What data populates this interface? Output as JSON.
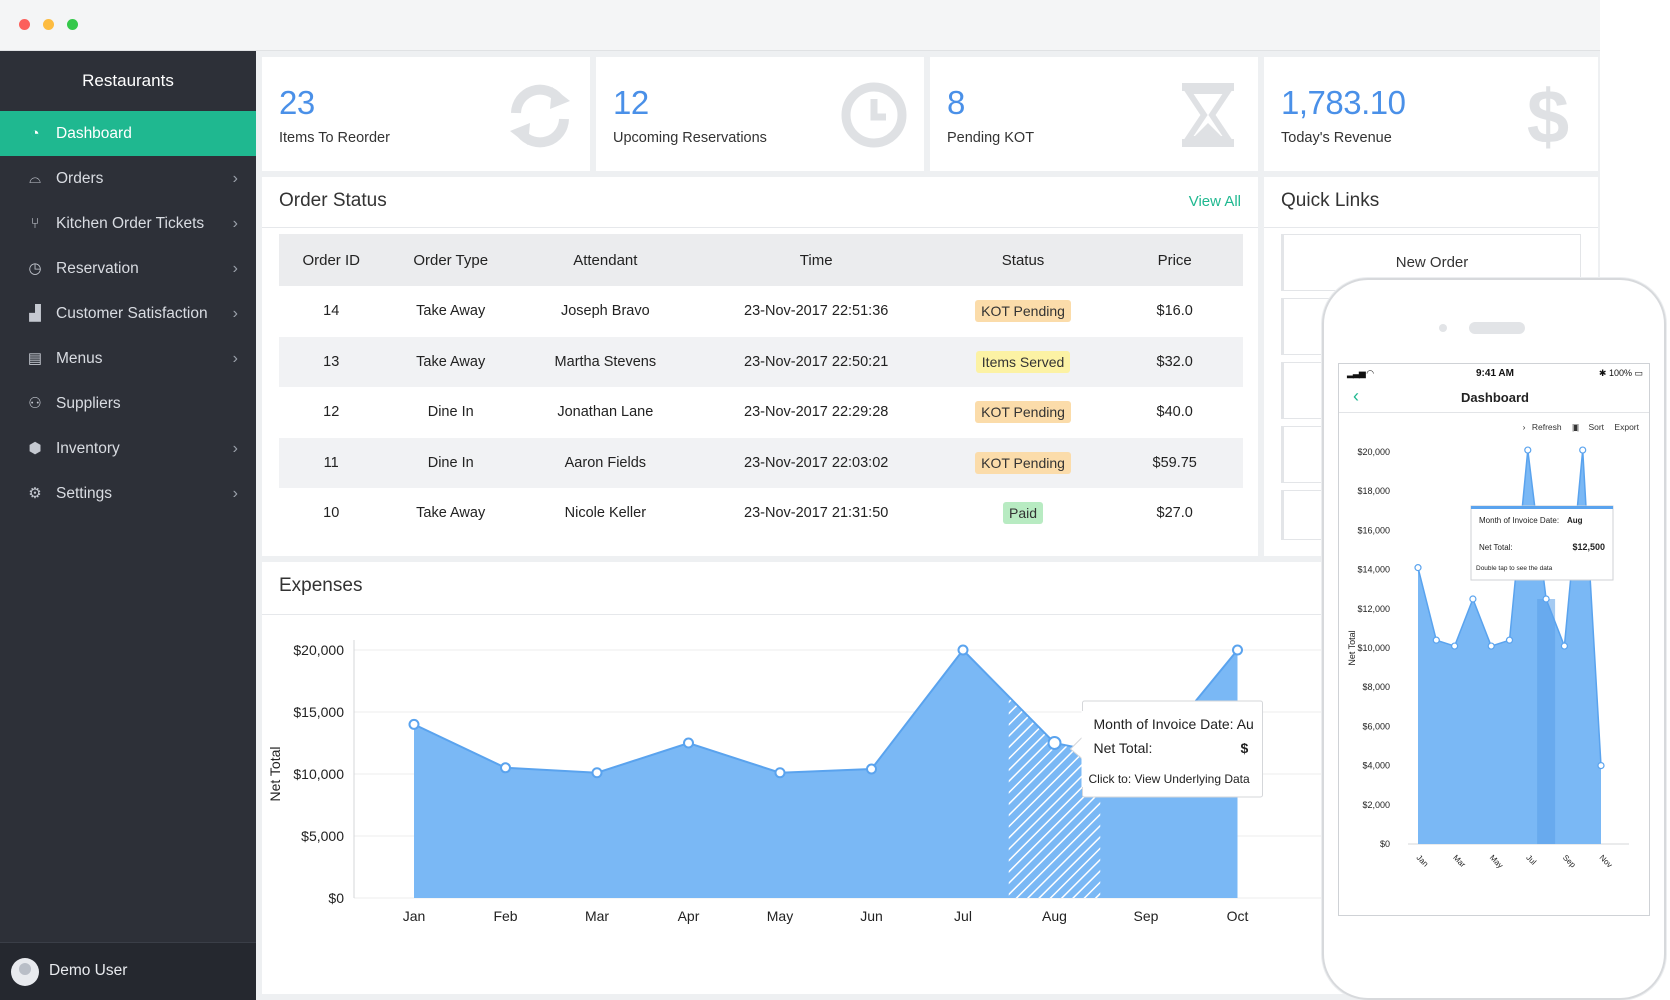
{
  "window": {
    "controls": [
      "close",
      "minimize",
      "zoom"
    ]
  },
  "sidebar": {
    "brand": "Restaurants",
    "items": [
      {
        "label": "Dashboard",
        "icon": "dashboard-icon",
        "active": true,
        "chevron": false
      },
      {
        "label": "Orders",
        "icon": "cloche-icon",
        "active": false,
        "chevron": true
      },
      {
        "label": "Kitchen Order Tickets",
        "icon": "cutlery-icon",
        "active": false,
        "chevron": true
      },
      {
        "label": "Reservation",
        "icon": "clock-icon",
        "active": false,
        "chevron": true
      },
      {
        "label": "Customer Satisfaction",
        "icon": "ranking-icon",
        "active": false,
        "chevron": true
      },
      {
        "label": "Menus",
        "icon": "menu-book-icon",
        "active": false,
        "chevron": true
      },
      {
        "label": "Suppliers",
        "icon": "people-icon",
        "active": false,
        "chevron": false
      },
      {
        "label": "Inventory",
        "icon": "box-icon",
        "active": false,
        "chevron": true
      },
      {
        "label": "Settings",
        "icon": "gear-icon",
        "active": false,
        "chevron": true
      }
    ],
    "user": "Demo User"
  },
  "stats": [
    {
      "value": "23",
      "label": "Items To Reorder",
      "icon": "refresh-icon"
    },
    {
      "value": "12",
      "label": "Upcoming Reservations",
      "icon": "clock-icon"
    },
    {
      "value": "8",
      "label": "Pending KOT",
      "icon": "hourglass-icon"
    },
    {
      "value": "1,783.10",
      "label": "Today's Revenue",
      "icon": "dollar-icon"
    }
  ],
  "order_status": {
    "title": "Order Status",
    "view_all": "View All",
    "columns": [
      "Order ID",
      "Order Type",
      "Attendant",
      "Time",
      "Status",
      "Price"
    ],
    "rows": [
      {
        "id": "14",
        "type": "Take Away",
        "attendant": "Joseph Bravo",
        "time": "23-Nov-2017 22:51:36",
        "status": "KOT Pending",
        "price": "$16.0"
      },
      {
        "id": "13",
        "type": "Take Away",
        "attendant": "Martha Stevens",
        "time": "23-Nov-2017 22:50:21",
        "status": "Items Served",
        "price": "$32.0"
      },
      {
        "id": "12",
        "type": "Dine In",
        "attendant": "Jonathan Lane",
        "time": "23-Nov-2017 22:29:28",
        "status": "KOT Pending",
        "price": "$40.0"
      },
      {
        "id": "11",
        "type": "Dine In",
        "attendant": "Aaron Fields",
        "time": "23-Nov-2017 22:03:02",
        "status": "KOT Pending",
        "price": "$59.75"
      },
      {
        "id": "10",
        "type": "Take Away",
        "attendant": "Nicole Keller",
        "time": "23-Nov-2017 21:31:50",
        "status": "Paid",
        "price": "$27.0"
      }
    ]
  },
  "status_colors": {
    "KOT Pending": "#fbdcaa",
    "Items Served": "#fcf2a4",
    "Paid": "#b8ebc2"
  },
  "quick_links": {
    "title": "Quick Links",
    "items": [
      "New Order"
    ]
  },
  "expenses": {
    "title": "Expenses"
  },
  "colors": {
    "accent": "#1fb890",
    "stat_blue": "#4a90e8",
    "area_fill": "#7ab8f5",
    "area_line": "#5aa3ee"
  },
  "chart_data": [
    {
      "type": "area",
      "title": "",
      "xlabel": "",
      "ylabel": "Net Total",
      "categories": [
        "Jan",
        "Feb",
        "Mar",
        "Apr",
        "May",
        "Jun",
        "Jul",
        "Aug",
        "Sep",
        "Oct"
      ],
      "values": [
        14000,
        10500,
        10100,
        12500,
        10100,
        10400,
        20000,
        12500,
        11000,
        20000
      ],
      "y_ticks": [
        "$0",
        "$5,000",
        "$10,000",
        "$15,000",
        "$20,000"
      ],
      "ylim": [
        0,
        20000
      ],
      "highlight_category": "Aug",
      "tooltip": {
        "line1": "Month of Invoice Date:  Au",
        "line2_label": "Net Total:",
        "line2_value": "$",
        "line3": "Click to: View Underlying Data"
      }
    },
    {
      "type": "area",
      "title": "",
      "xlabel": "",
      "ylabel": "Net Total",
      "categories": [
        "Jan",
        "Feb",
        "Mar",
        "Apr",
        "May",
        "Jun",
        "Jul",
        "Aug",
        "Sep",
        "Oct",
        "Nov"
      ],
      "tick_labels": [
        "Jan",
        "Mar",
        "May",
        "Jul",
        "Sep",
        "Nov"
      ],
      "values": [
        14100,
        10400,
        10100,
        12500,
        10100,
        10400,
        20100,
        12500,
        10100,
        20100,
        4000
      ],
      "y_ticks": [
        "$0",
        "$2,000",
        "$4,000",
        "$6,000",
        "$8,000",
        "$10,000",
        "$12,000",
        "$14,000",
        "$16,000",
        "$18,000",
        "$20,000"
      ],
      "ylim": [
        0,
        20000
      ],
      "highlight_category": "Aug",
      "tooltip": {
        "month_label": "Month of Invoice Date:",
        "month_value": "Aug",
        "net_label": "Net Total:",
        "net_value": "$12,500",
        "hint": "Double tap to see the data"
      }
    }
  ],
  "mobile": {
    "time": "9:41 AM",
    "battery": "100%",
    "title": "Dashboard",
    "tools": [
      "Refresh",
      "Sort",
      "Export"
    ]
  }
}
